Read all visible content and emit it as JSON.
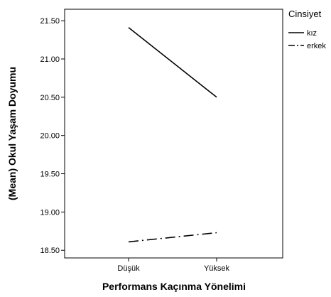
{
  "chart_data": {
    "type": "line",
    "xlabel": "Performans Kaçınma Yönelimi",
    "ylabel": "(Mean) Okul Yaşam Doyumu",
    "categories": [
      "Düşük",
      "Yüksek"
    ],
    "ylim": [
      18.4,
      21.65
    ],
    "yticks": [
      "18.50",
      "19.00",
      "19.50",
      "20.00",
      "20.50",
      "21.00",
      "21.50"
    ],
    "grid": false,
    "legend": {
      "title": "Cinsiyet",
      "placement": "right"
    },
    "series": [
      {
        "name": "kız",
        "values": [
          21.41,
          20.5
        ],
        "line_style": "solid",
        "color": "#000000"
      },
      {
        "name": "erkek",
        "values": [
          18.61,
          18.73
        ],
        "line_style": "dash-dot",
        "color": "#000000"
      }
    ]
  }
}
